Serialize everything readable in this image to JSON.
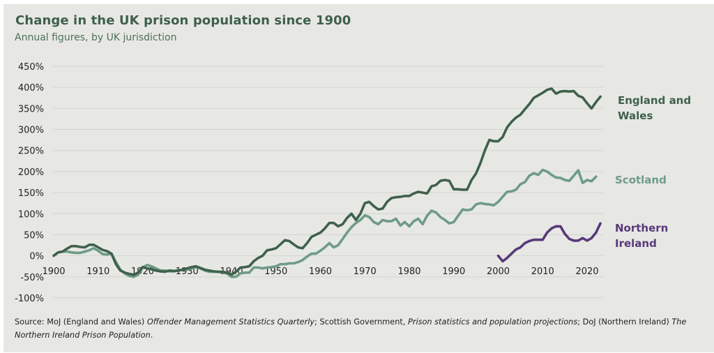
{
  "chart_data": {
    "type": "line",
    "title": "Change in the UK prison population since 1900",
    "subtitle": "Annual figures, by UK jurisdiction",
    "xlabel": "",
    "ylabel": "",
    "xlim": [
      1900,
      2023
    ],
    "ylim": [
      -100,
      450
    ],
    "grid": true,
    "legend_placement": "right (direct labels at line ends)",
    "y_ticks": [
      450,
      400,
      350,
      300,
      250,
      200,
      150,
      100,
      50,
      0,
      -50,
      -100
    ],
    "y_tick_labels": [
      "450%",
      "400%",
      "350%",
      "300%",
      "250%",
      "200%",
      "150%",
      "100%",
      "50%",
      "0%",
      "-50%",
      "-100%"
    ],
    "x_ticks": [
      1900,
      1910,
      1920,
      1930,
      1940,
      1950,
      1960,
      1970,
      1980,
      1990,
      2000,
      2010,
      2020
    ],
    "x_tick_labels": [
      "1900",
      "1910",
      "1920",
      "1930",
      "1940",
      "1950",
      "1960",
      "1970",
      "1980",
      "1990",
      "2000",
      "2010",
      "2020"
    ],
    "series": [
      {
        "name": "England and Wales",
        "label_lines": [
          "England and",
          "Wales"
        ],
        "color": "#3f614b",
        "start_year": 1900,
        "values": [
          0,
          8,
          10,
          17,
          23,
          23,
          21,
          20,
          26,
          26,
          20,
          14,
          11,
          5,
          -20,
          -35,
          -40,
          -43,
          -45,
          -40,
          -27,
          -30,
          -32,
          -35,
          -37,
          -38,
          -35,
          -36,
          -35,
          -33,
          -30,
          -27,
          -25,
          -29,
          -33,
          -35,
          -37,
          -38,
          -38,
          -40,
          -45,
          -38,
          -28,
          -27,
          -25,
          -13,
          -5,
          0,
          13,
          15,
          18,
          27,
          37,
          35,
          27,
          20,
          18,
          30,
          45,
          50,
          55,
          65,
          78,
          78,
          70,
          75,
          90,
          100,
          85,
          100,
          125,
          128,
          118,
          110,
          112,
          128,
          137,
          139,
          140,
          142,
          142,
          148,
          152,
          150,
          148,
          165,
          168,
          178,
          180,
          178,
          158,
          158,
          157,
          157,
          180,
          195,
          220,
          250,
          275,
          272,
          272,
          282,
          305,
          318,
          328,
          335,
          348,
          360,
          375,
          381,
          387,
          394,
          397,
          385,
          390,
          391,
          390,
          391,
          380,
          376,
          362,
          350,
          365,
          378
        ]
      },
      {
        "name": "Scotland",
        "label_lines": [
          "Scotland"
        ],
        "color": "#6e9b87",
        "start_year": 1900,
        "values": [
          0,
          8,
          10,
          10,
          8,
          7,
          7,
          10,
          13,
          18,
          12,
          4,
          3,
          5,
          -15,
          -33,
          -42,
          -48,
          -50,
          -45,
          -28,
          -22,
          -25,
          -30,
          -35,
          -35,
          -37,
          -37,
          -35,
          -33,
          -33,
          -30,
          -27,
          -30,
          -35,
          -38,
          -38,
          -38,
          -40,
          -42,
          -50,
          -50,
          -42,
          -40,
          -40,
          -28,
          -28,
          -30,
          -28,
          -27,
          -25,
          -20,
          -20,
          -18,
          -18,
          -15,
          -10,
          -2,
          5,
          5,
          12,
          20,
          30,
          20,
          25,
          40,
          55,
          68,
          78,
          85,
          96,
          92,
          80,
          75,
          85,
          82,
          82,
          88,
          72,
          80,
          70,
          82,
          88,
          75,
          95,
          107,
          103,
          92,
          85,
          77,
          80,
          95,
          110,
          108,
          110,
          122,
          125,
          123,
          122,
          120,
          128,
          140,
          152,
          153,
          157,
          170,
          175,
          190,
          196,
          192,
          204,
          200,
          192,
          186,
          185,
          180,
          178,
          190,
          203,
          173,
          180,
          177,
          188
        ]
      },
      {
        "name": "Northern Ireland",
        "label_lines": [
          "Northern",
          "Ireland"
        ],
        "color": "#58397a",
        "start_year": 2000,
        "values": [
          0,
          -13,
          -5,
          5,
          15,
          20,
          30,
          35,
          38,
          38,
          38,
          55,
          65,
          70,
          70,
          52,
          40,
          36,
          36,
          42,
          36,
          42,
          55,
          77
        ]
      }
    ],
    "source_note": {
      "prefix": "Source: MoJ (England and Wales) ",
      "title1": "Offender Management Statistics Quarterly",
      "mid1": "; Scottish Government, ",
      "title2": "Prison statistics and population projections",
      "mid2": "; DoJ (Northern Ireland) ",
      "title3": "The Northern Ireland Prison Population",
      "suffix": "."
    }
  }
}
